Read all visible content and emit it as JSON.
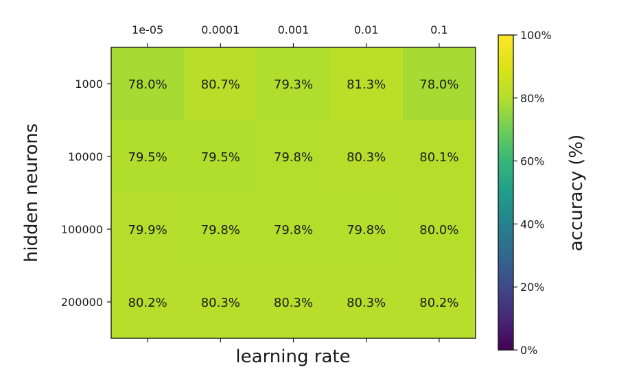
{
  "chart_data": {
    "type": "heatmap",
    "xlabel": "learning rate",
    "ylabel": "hidden neurons",
    "x_ticks": [
      "1e-05",
      "0.0001",
      "0.001",
      "0.01",
      "0.1"
    ],
    "y_ticks": [
      "1000",
      "10000",
      "100000",
      "200000"
    ],
    "values": [
      [
        78.0,
        80.7,
        79.3,
        81.3,
        78.0
      ],
      [
        79.5,
        79.5,
        79.8,
        80.3,
        80.1
      ],
      [
        79.9,
        79.8,
        79.8,
        79.8,
        80.0
      ],
      [
        80.2,
        80.3,
        80.3,
        80.3,
        80.2
      ]
    ],
    "cell_labels": [
      [
        "78.0%",
        "80.7%",
        "79.3%",
        "81.3%",
        "78.0%"
      ],
      [
        "79.5%",
        "79.5%",
        "79.8%",
        "80.3%",
        "80.1%"
      ],
      [
        "79.9%",
        "79.8%",
        "79.8%",
        "79.8%",
        "80.0%"
      ],
      [
        "80.2%",
        "80.3%",
        "80.3%",
        "80.3%",
        "80.2%"
      ]
    ],
    "x_tick_position": "top",
    "colormap": "viridis",
    "colorbar": {
      "label": "accuracy (%)",
      "range": [
        0,
        100
      ],
      "ticks": [
        0,
        20,
        40,
        60,
        80,
        100
      ],
      "tick_labels": [
        "0%",
        "20%",
        "40%",
        "60%",
        "80%",
        "100%"
      ]
    },
    "grid": false
  }
}
